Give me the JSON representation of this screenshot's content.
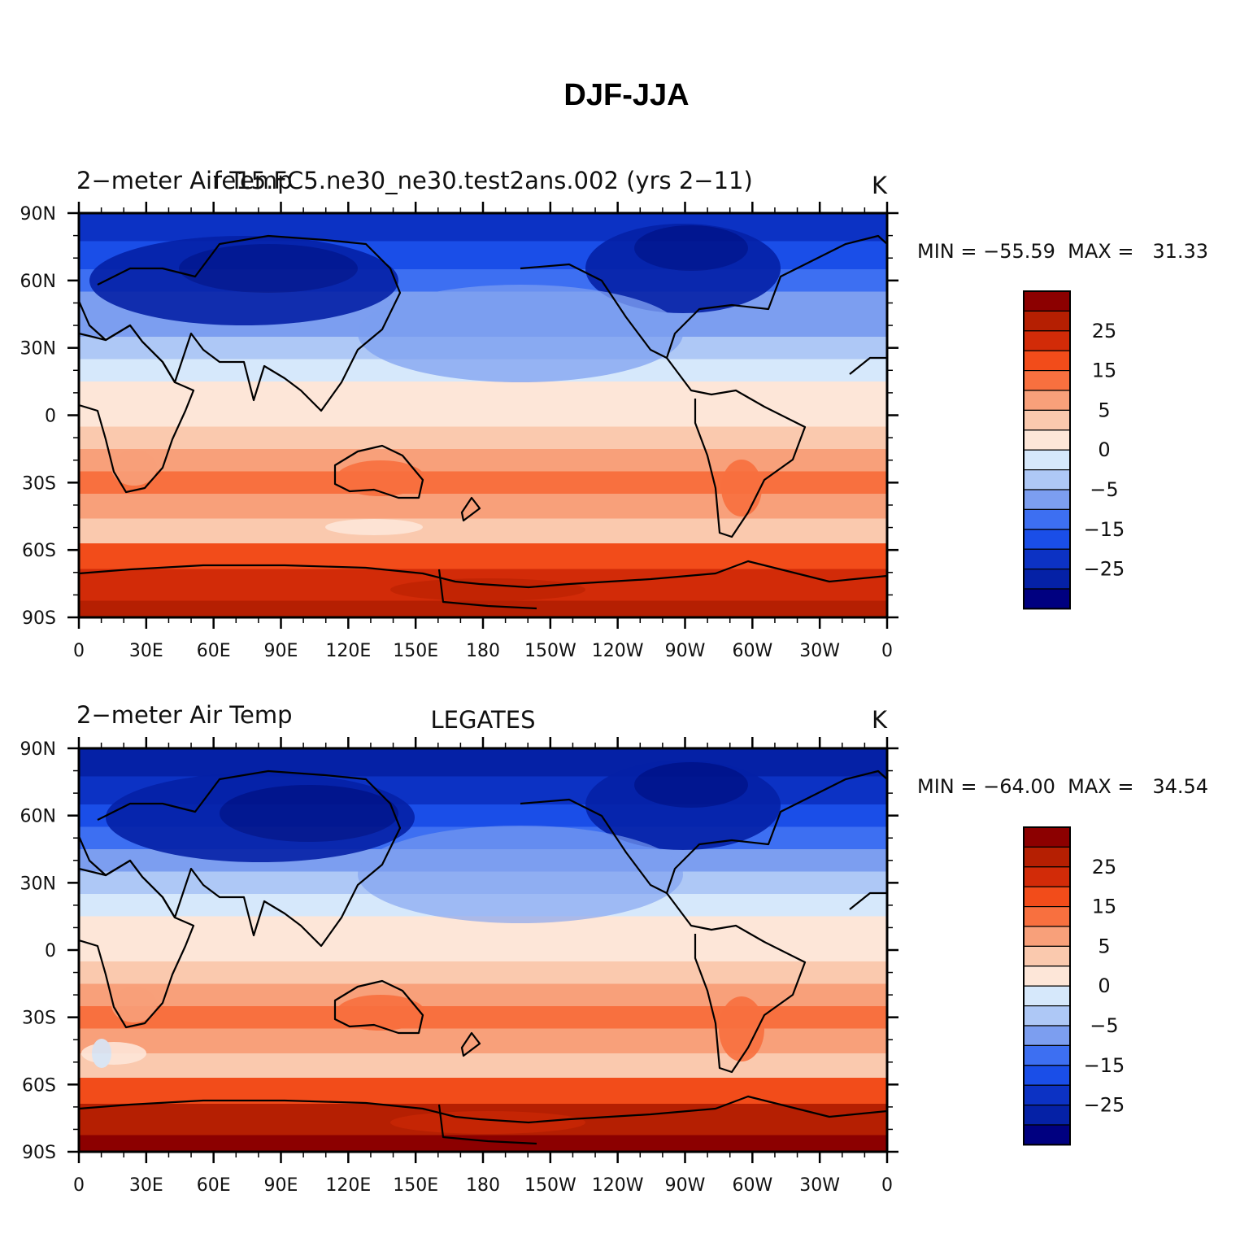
{
  "figure_title": "DJF-JJA",
  "colors": {
    "levels": [
      "#000080",
      "#0521a6",
      "#0c32c4",
      "#1a4ee8",
      "#3d6ff2",
      "#7c9ef0",
      "#aec8f6",
      "#d6e8fb",
      "#fde6d8",
      "#fac9ae",
      "#f8a07a",
      "#f8703f",
      "#f24c1a",
      "#d22b08",
      "#b51f02",
      "#8c0000"
    ]
  },
  "colorbar_labels": [
    "25",
    "15",
    "5",
    "0",
    "−5",
    "−15",
    "−25"
  ],
  "x_ticks": [
    "0",
    "30E",
    "60E",
    "90E",
    "120E",
    "150E",
    "180",
    "150W",
    "120W",
    "90W",
    "60W",
    "30W",
    "0"
  ],
  "y_ticks": [
    "90N",
    "60N",
    "30N",
    "0",
    "30S",
    "60S",
    "90S"
  ],
  "panels": [
    {
      "left_title": "2−meter Air Temp",
      "center_title": "fe15.FC5.ne30_ne30.test2ans.002 (yrs 2−11)",
      "units": "K",
      "minmax": "MIN = −55.59  MAX =   31.33"
    },
    {
      "left_title": "2−meter Air Temp",
      "center_title": "LEGATES",
      "units": "K",
      "minmax": "MIN = −64.00  MAX =   34.54"
    }
  ],
  "chart_data": [
    {
      "type": "heatmap",
      "title": "fe15.FC5.ne30_ne30.test2ans.002 (yrs 2−11)",
      "variable": "2-meter Air Temp",
      "units": "K",
      "season": "DJF-JJA",
      "x_range": [
        0,
        360
      ],
      "y_range": [
        -90,
        90
      ],
      "min": -55.59,
      "max": 31.33,
      "contour_levels": [
        -35,
        -30,
        -25,
        -20,
        -15,
        -10,
        -5,
        -2,
        0,
        2,
        5,
        10,
        15,
        20,
        25,
        30
      ],
      "zonal_profile": {
        "lat": [
          -90,
          -75,
          -62,
          -52,
          -40,
          -30,
          -20,
          -10,
          0,
          10,
          20,
          30,
          40,
          50,
          60,
          70,
          85,
          90
        ],
        "value": [
          22,
          18,
          10,
          1,
          4,
          5,
          4,
          1,
          -1,
          -2,
          -4,
          -7,
          -11,
          -15,
          -19,
          -24,
          -30,
          -30
        ]
      }
    },
    {
      "type": "heatmap",
      "title": "LEGATES",
      "variable": "2-meter Air Temp",
      "units": "K",
      "season": "DJF-JJA",
      "x_range": [
        0,
        360
      ],
      "y_range": [
        -90,
        90
      ],
      "min": -64.0,
      "max": 34.54,
      "contour_levels": [
        -35,
        -30,
        -25,
        -20,
        -15,
        -10,
        -5,
        -2,
        0,
        2,
        5,
        10,
        15,
        20,
        25,
        30
      ],
      "zonal_profile": {
        "lat": [
          -90,
          -75,
          -62,
          -52,
          -40,
          -30,
          -20,
          -10,
          0,
          10,
          20,
          30,
          40,
          50,
          60,
          70,
          85,
          90
        ],
        "value": [
          27,
          22,
          12,
          0,
          4,
          5,
          4,
          1,
          -1,
          -2,
          -4,
          -8,
          -12,
          -16,
          -21,
          -27,
          -33,
          -33
        ]
      }
    }
  ]
}
